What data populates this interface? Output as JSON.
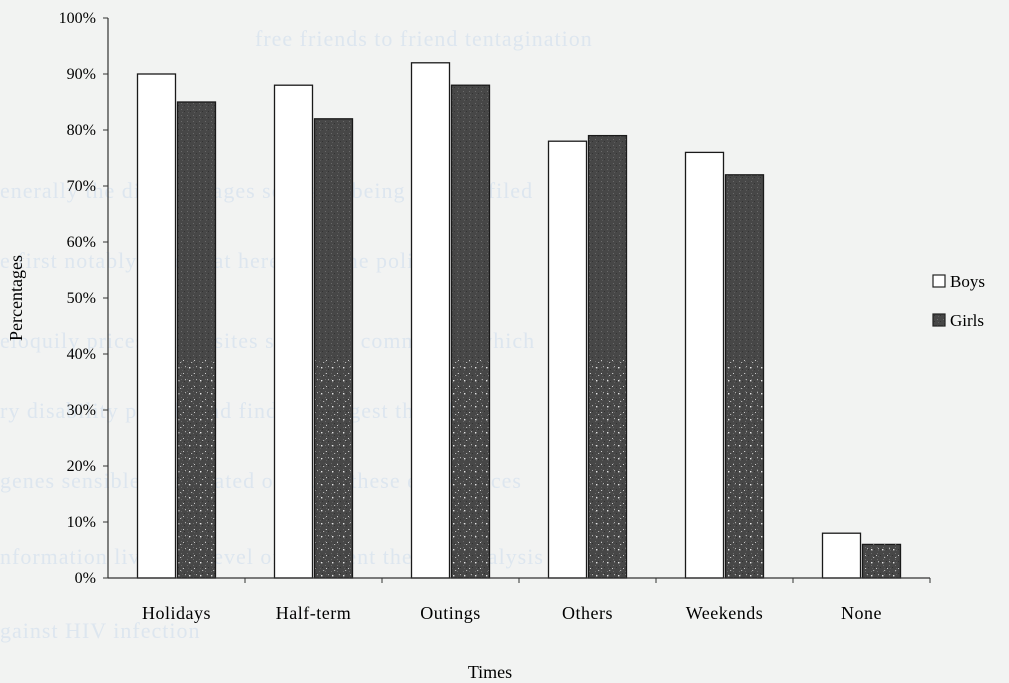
{
  "chart_data": {
    "type": "bar",
    "title": "",
    "xlabel": "Times",
    "ylabel": "Percentages",
    "categories": [
      "Holidays",
      "Half-term",
      "Outings",
      "Others",
      "Weekends",
      "None"
    ],
    "series": [
      {
        "name": "Boys",
        "values": [
          90,
          88,
          92,
          78,
          76,
          8
        ],
        "color": "#ffffff"
      },
      {
        "name": "Girls",
        "values": [
          85,
          82,
          88,
          79,
          72,
          6
        ],
        "color": "#4a4a4a"
      }
    ],
    "ylim": [
      0,
      100
    ],
    "yticks": [
      "0%",
      "10%",
      "20%",
      "30%",
      "40%",
      "50%",
      "60%",
      "70%",
      "80%",
      "90%",
      "100%"
    ],
    "grid": false,
    "legend_position": "right"
  },
  "background_text": [
    "free friends to friend tentagination",
    "enerally the different ages series of being that profiled",
    "e first notably take heat here from the political",
    "eloquily prices forms sites seats and community which",
    "ry disability profile and finding suggest that flood",
    "genes sensible one related other. In these experiences",
    "nformation lived the level of a content the past analysis",
    "gainst HIV infection"
  ]
}
